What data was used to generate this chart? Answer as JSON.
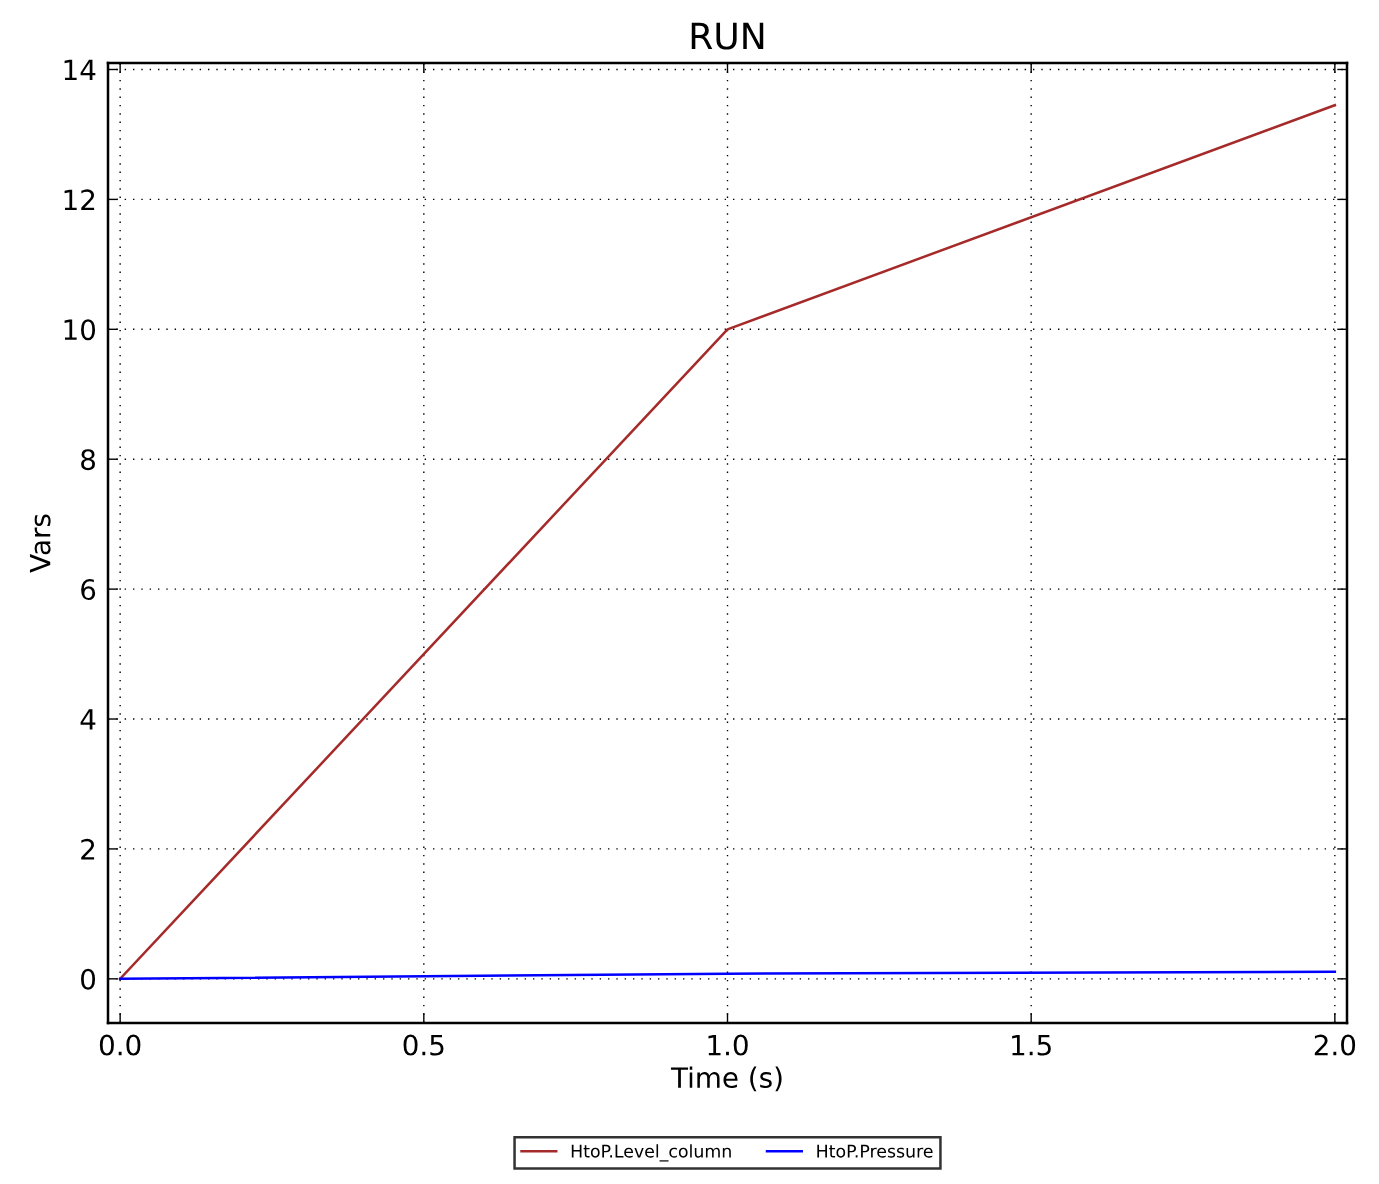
{
  "chart_data": {
    "type": "line",
    "title": "RUN",
    "xlabel": "Time (s)",
    "ylabel": "Vars",
    "series": [
      {
        "name": "HtoP.Level_column",
        "color": "#a52a2a",
        "x": [
          0,
          1,
          2
        ],
        "values": [
          0,
          10,
          13.45
        ]
      },
      {
        "name": "HtoP.Pressure",
        "color": "#0000ff",
        "x": [
          0,
          1,
          2
        ],
        "values": [
          0,
          0.08,
          0.11
        ]
      }
    ],
    "xlim": [
      -0.02,
      2.02
    ],
    "ylim": [
      -0.68,
      14.1
    ],
    "xticks": [
      {
        "value": 0,
        "label": "0.0"
      },
      {
        "value": 0.5,
        "label": "0.5"
      },
      {
        "value": 1,
        "label": "1.0"
      },
      {
        "value": 1.5,
        "label": "1.5"
      },
      {
        "value": 2,
        "label": "2.0"
      }
    ],
    "yticks": [
      0,
      2,
      4,
      6,
      8,
      10,
      12,
      14
    ],
    "grid": true,
    "legend": "bottom",
    "line_style": "solid",
    "marker": "none"
  }
}
